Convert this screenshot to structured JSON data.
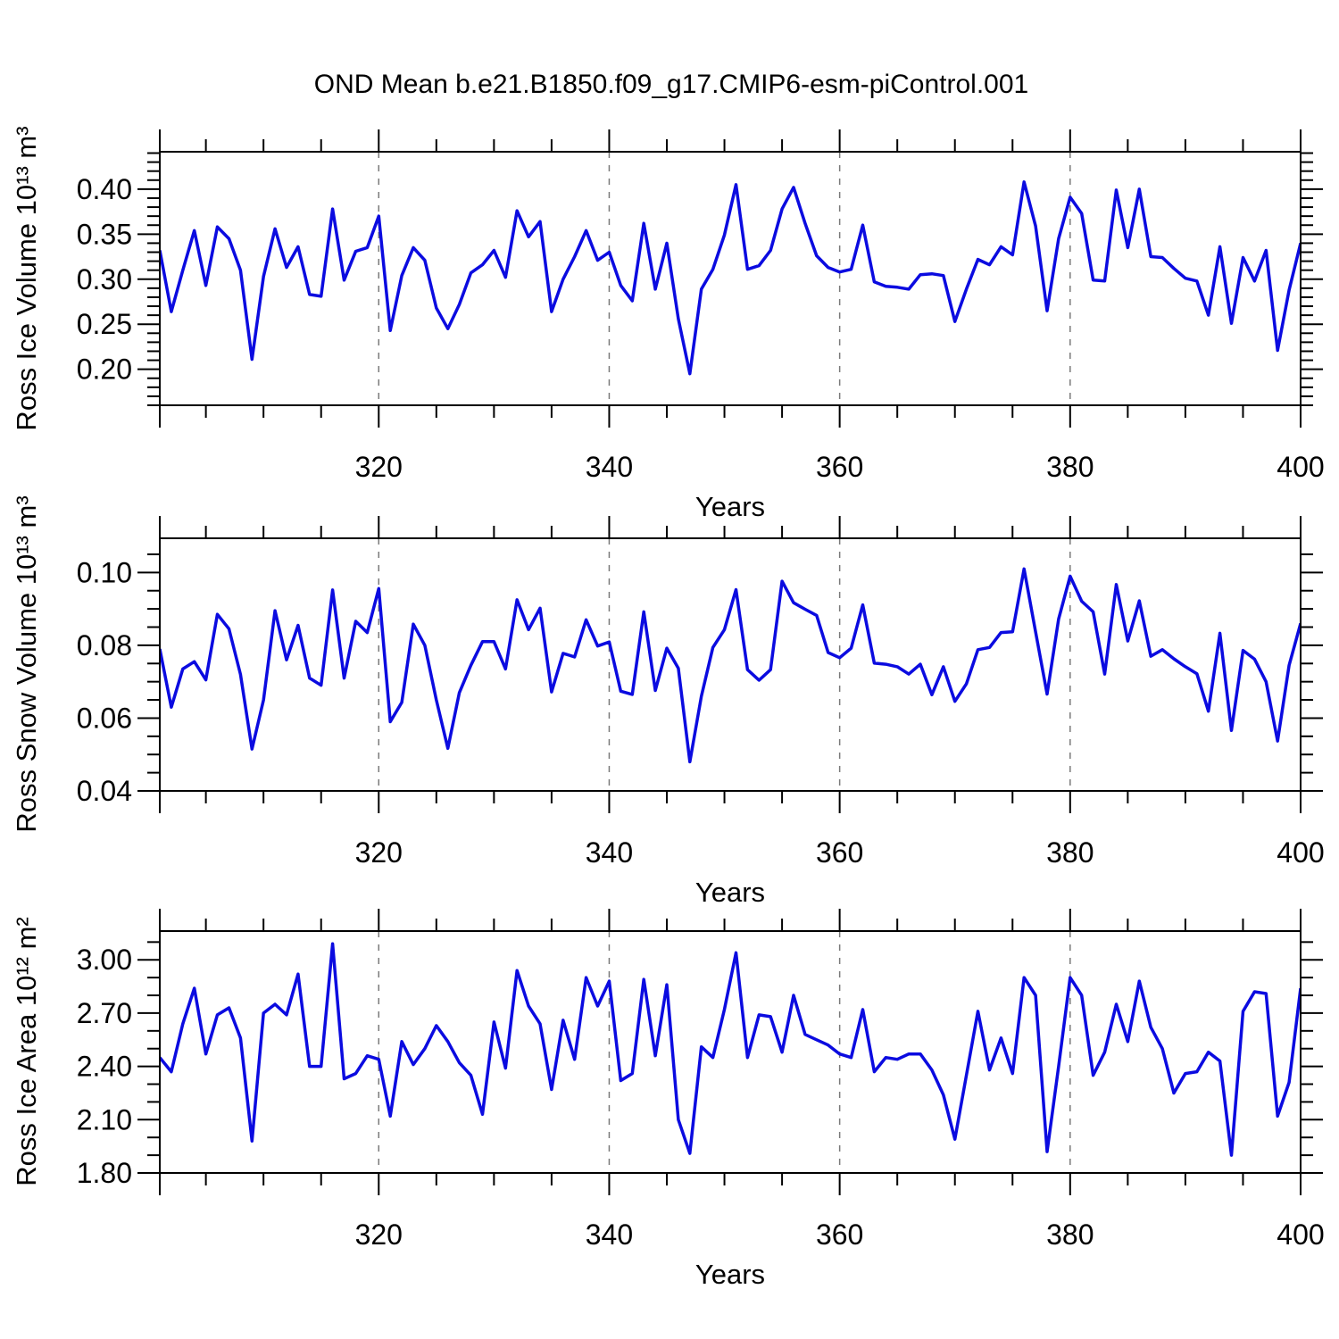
{
  "title": "OND Mean b.e21.B1850.f09_g17.CMIP6-esm-piControl.001",
  "colors": {
    "line": "#0b0be0",
    "grid": "#7a7a7a",
    "axis": "#000000",
    "background": "#ffffff"
  },
  "chart_data": [
    {
      "type": "line",
      "panel": "ross-ice-volume",
      "ylabel": "Ross Ice Volume 10¹³ m³",
      "xlabel": "Years",
      "x_start": 301,
      "x_step": 1,
      "xlim": [
        301,
        400
      ],
      "xticks": [
        320,
        340,
        360,
        380,
        400
      ],
      "xtick_labels": [
        "320",
        "340",
        "360",
        "380",
        "400"
      ],
      "x_minor_step": 5,
      "x_gridlines": [
        320,
        340,
        360,
        380
      ],
      "ylim": [
        0.16,
        0.4415
      ],
      "yticks": [
        0.2,
        0.25,
        0.3,
        0.35,
        0.4
      ],
      "ytick_labels": [
        "0.20",
        "0.25",
        "0.30",
        "0.35",
        "0.40"
      ],
      "y_minor_step": 0.01,
      "grid": "x-dashed-only",
      "legend": "none",
      "values": [
        0.332,
        0.264,
        0.31,
        0.354,
        0.293,
        0.358,
        0.345,
        0.31,
        0.211,
        0.303,
        0.356,
        0.313,
        0.336,
        0.283,
        0.281,
        0.378,
        0.299,
        0.331,
        0.335,
        0.37,
        0.243,
        0.304,
        0.335,
        0.321,
        0.268,
        0.245,
        0.272,
        0.307,
        0.316,
        0.332,
        0.302,
        0.376,
        0.347,
        0.364,
        0.264,
        0.3,
        0.325,
        0.354,
        0.321,
        0.33,
        0.293,
        0.276,
        0.362,
        0.289,
        0.34,
        0.256,
        0.195,
        0.289,
        0.311,
        0.349,
        0.405,
        0.311,
        0.315,
        0.332,
        0.378,
        0.402,
        0.362,
        0.326,
        0.313,
        0.308,
        0.311,
        0.36,
        0.297,
        0.292,
        0.291,
        0.289,
        0.305,
        0.306,
        0.304,
        0.253,
        0.289,
        0.322,
        0.316,
        0.336,
        0.327,
        0.408,
        0.359,
        0.265,
        0.345,
        0.391,
        0.373,
        0.299,
        0.298,
        0.399,
        0.335,
        0.4,
        0.325,
        0.324,
        0.312,
        0.301,
        0.298,
        0.26,
        0.336,
        0.251,
        0.324,
        0.298,
        0.332,
        0.221,
        0.288,
        0.34
      ]
    },
    {
      "type": "line",
      "panel": "ross-snow-volume",
      "ylabel": "Ross Snow Volume 10¹³ m³",
      "xlabel": "Years",
      "x_start": 301,
      "x_step": 1,
      "xlim": [
        301,
        400
      ],
      "xticks": [
        320,
        340,
        360,
        380,
        400
      ],
      "xtick_labels": [
        "320",
        "340",
        "360",
        "380",
        "400"
      ],
      "x_minor_step": 5,
      "x_gridlines": [
        320,
        340,
        360,
        380
      ],
      "ylim": [
        0.04,
        0.1094
      ],
      "yticks": [
        0.04,
        0.06,
        0.08,
        0.1
      ],
      "ytick_labels": [
        "0.04",
        "0.06",
        "0.08",
        "0.10"
      ],
      "y_minor_step": 0.005,
      "grid": "x-dashed-only",
      "legend": "none",
      "values": [
        0.079,
        0.063,
        0.0735,
        0.0755,
        0.0705,
        0.0885,
        0.0845,
        0.072,
        0.0515,
        0.065,
        0.0895,
        0.076,
        0.0855,
        0.071,
        0.069,
        0.0952,
        0.071,
        0.0866,
        0.0835,
        0.0956,
        0.059,
        0.0643,
        0.0858,
        0.08,
        0.065,
        0.0517,
        0.067,
        0.0745,
        0.081,
        0.081,
        0.0735,
        0.0925,
        0.0843,
        0.0902,
        0.0672,
        0.0778,
        0.0768,
        0.087,
        0.0798,
        0.0809,
        0.0674,
        0.0665,
        0.0892,
        0.0676,
        0.0792,
        0.0737,
        0.048,
        0.066,
        0.0794,
        0.0843,
        0.0953,
        0.0733,
        0.0704,
        0.0733,
        0.0976,
        0.0917,
        0.0899,
        0.0882,
        0.078,
        0.0766,
        0.0792,
        0.0911,
        0.0751,
        0.0748,
        0.0741,
        0.0721,
        0.0748,
        0.0664,
        0.0741,
        0.0646,
        0.0694,
        0.0788,
        0.0794,
        0.0835,
        0.0837,
        0.101,
        0.0837,
        0.0666,
        0.0872,
        0.099,
        0.0921,
        0.0892,
        0.0721,
        0.0967,
        0.0812,
        0.0922,
        0.077,
        0.0788,
        0.0763,
        0.0741,
        0.0722,
        0.0619,
        0.0833,
        0.0566,
        0.0786,
        0.0762,
        0.07,
        0.0537,
        0.0745,
        0.086
      ]
    },
    {
      "type": "line",
      "panel": "ross-ice-area",
      "ylabel": "Ross Ice Area 10¹² m²",
      "xlabel": "Years",
      "x_start": 301,
      "x_step": 1,
      "xlim": [
        301,
        400
      ],
      "xticks": [
        320,
        340,
        360,
        380,
        400
      ],
      "xtick_labels": [
        "320",
        "340",
        "360",
        "380",
        "400"
      ],
      "x_minor_step": 5,
      "x_gridlines": [
        320,
        340,
        360,
        380
      ],
      "ylim": [
        1.8,
        3.162
      ],
      "yticks": [
        1.8,
        2.1,
        2.4,
        2.7,
        3.0
      ],
      "ytick_labels": [
        "1.80",
        "2.10",
        "2.40",
        "2.70",
        "3.00"
      ],
      "y_minor_step": 0.1,
      "grid": "x-dashed-only",
      "legend": "none",
      "values": [
        2.45,
        2.37,
        2.64,
        2.84,
        2.47,
        2.69,
        2.73,
        2.56,
        1.98,
        2.7,
        2.75,
        2.69,
        2.92,
        2.4,
        2.4,
        3.09,
        2.33,
        2.36,
        2.46,
        2.44,
        2.12,
        2.54,
        2.41,
        2.5,
        2.63,
        2.54,
        2.42,
        2.35,
        2.13,
        2.65,
        2.39,
        2.94,
        2.74,
        2.64,
        2.27,
        2.66,
        2.44,
        2.9,
        2.74,
        2.88,
        2.32,
        2.36,
        2.89,
        2.46,
        2.86,
        2.1,
        1.91,
        2.51,
        2.45,
        2.72,
        3.04,
        2.45,
        2.69,
        2.68,
        2.48,
        2.8,
        2.58,
        2.55,
        2.52,
        2.47,
        2.45,
        2.72,
        2.37,
        2.45,
        2.44,
        2.47,
        2.47,
        2.38,
        2.24,
        1.99,
        2.35,
        2.71,
        2.38,
        2.56,
        2.36,
        2.9,
        2.8,
        1.92,
        2.4,
        2.9,
        2.8,
        2.35,
        2.48,
        2.75,
        2.54,
        2.88,
        2.62,
        2.5,
        2.25,
        2.36,
        2.37,
        2.48,
        2.43,
        1.9,
        2.71,
        2.82,
        2.81,
        2.12,
        2.31,
        2.84
      ]
    }
  ]
}
